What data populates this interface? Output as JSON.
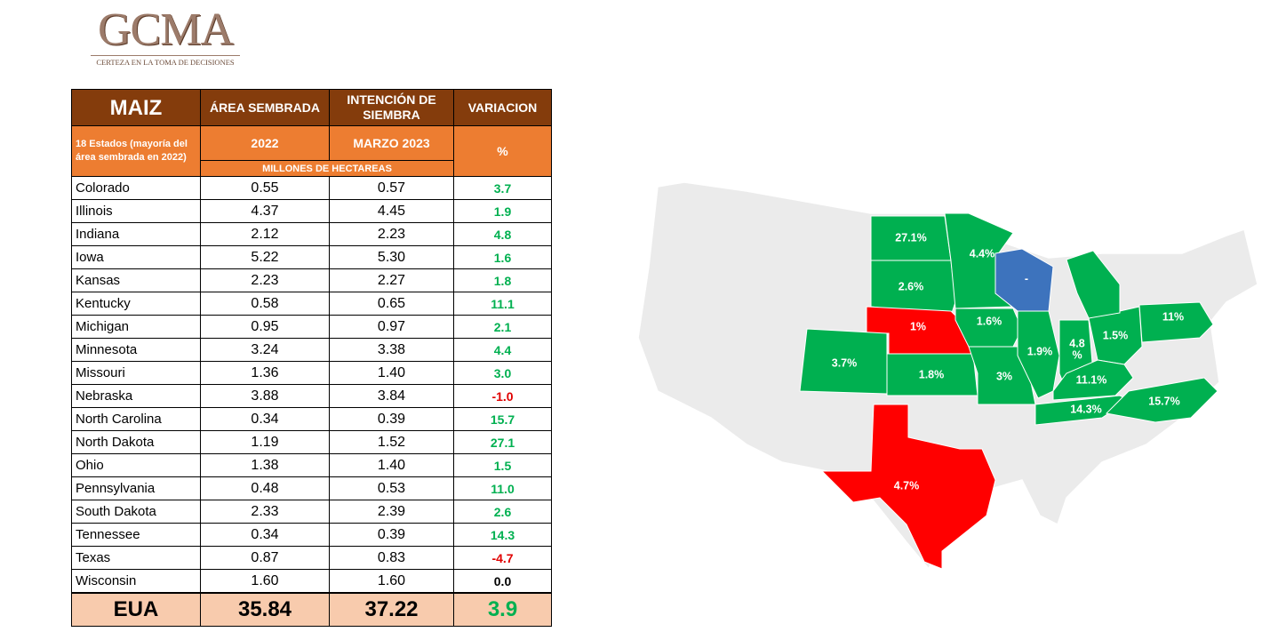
{
  "logo": {
    "name": "GCMA",
    "tagline": "CERTEZA EN LA TOMA DE DECISIONES"
  },
  "table": {
    "header": {
      "crop": "MAIZ",
      "col1": "ÁREA SEMBRADA",
      "col2": "INTENCIÓN DE SIEMBRA",
      "col3": "VARIACION",
      "scope": "18 Estados (mayoría del área sembrada en 2022)",
      "year1": "2022",
      "year2": "MARZO 2023",
      "unit_pct": "%",
      "units": "MILLONES DE HECTAREAS"
    },
    "rows": [
      [
        "Colorado",
        "0.55",
        "0.57",
        "3.7"
      ],
      [
        "Illinois",
        "4.37",
        "4.45",
        "1.9"
      ],
      [
        "Indiana",
        "2.12",
        "2.23",
        "4.8"
      ],
      [
        "Iowa",
        "5.22",
        "5.30",
        "1.6"
      ],
      [
        "Kansas",
        "2.23",
        "2.27",
        "1.8"
      ],
      [
        "Kentucky",
        "0.58",
        "0.65",
        "11.1"
      ],
      [
        "Michigan",
        "0.95",
        "0.97",
        "2.1"
      ],
      [
        "Minnesota",
        "3.24",
        "3.38",
        "4.4"
      ],
      [
        "Missouri",
        "1.36",
        "1.40",
        "3.0"
      ],
      [
        "Nebraska",
        "3.88",
        "3.84",
        "-1.0"
      ],
      [
        "North Carolina",
        "0.34",
        "0.39",
        "15.7"
      ],
      [
        "North Dakota",
        "1.19",
        "1.52",
        "27.1"
      ],
      [
        "Ohio",
        "1.38",
        "1.40",
        "1.5"
      ],
      [
        "Pennsylvania",
        "0.48",
        "0.53",
        "11.0"
      ],
      [
        "South Dakota",
        "2.33",
        "2.39",
        "2.6"
      ],
      [
        "Tennessee",
        "0.34",
        "0.39",
        "14.3"
      ],
      [
        "Texas",
        "0.87",
        "0.83",
        "-4.7"
      ],
      [
        "Wisconsin",
        "1.60",
        "1.60",
        "0.0"
      ]
    ],
    "total": [
      "EUA",
      "35.84",
      "37.22",
      "3.9"
    ]
  },
  "map": {
    "states": [
      {
        "label": "27.1%",
        "color": "#00b050"
      },
      {
        "label": "2.6%",
        "color": "#00b050"
      },
      {
        "label": "1%",
        "color": "#ff0000"
      },
      {
        "label": "1.8%",
        "color": "#00b050"
      },
      {
        "label": "3.7%",
        "color": "#00b050"
      },
      {
        "label": "4.7%",
        "color": "#ff0000"
      },
      {
        "label": "4.4%",
        "color": "#00b050"
      },
      {
        "label": "-",
        "color": "#3d73bd"
      },
      {
        "label": "1.6%",
        "color": "#00b050"
      },
      {
        "label": "3%",
        "color": "#00b050"
      },
      {
        "label": "1.9%",
        "color": "#00b050"
      },
      {
        "label": "4.8",
        "label2": "%",
        "color": "#00b050"
      },
      {
        "label": "1.5%",
        "color": "#00b050"
      },
      {
        "color": "#00b050"
      },
      {
        "label": "11%",
        "color": "#00b050"
      },
      {
        "label": "11.1%",
        "color": "#00b050"
      },
      {
        "label": "14.3%",
        "color": "#00b050"
      },
      {
        "label": "15.7%",
        "color": "#00b050"
      }
    ]
  }
}
